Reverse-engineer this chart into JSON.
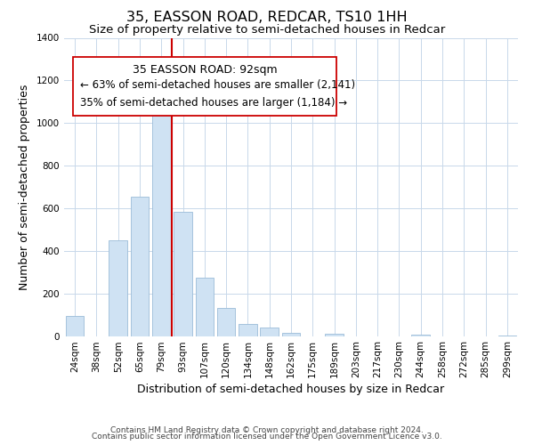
{
  "title": "35, EASSON ROAD, REDCAR, TS10 1HH",
  "subtitle": "Size of property relative to semi-detached houses in Redcar",
  "xlabel": "Distribution of semi-detached houses by size in Redcar",
  "ylabel": "Number of semi-detached properties",
  "bar_labels": [
    "24sqm",
    "38sqm",
    "52sqm",
    "65sqm",
    "79sqm",
    "93sqm",
    "107sqm",
    "120sqm",
    "134sqm",
    "148sqm",
    "162sqm",
    "175sqm",
    "189sqm",
    "203sqm",
    "217sqm",
    "230sqm",
    "244sqm",
    "258sqm",
    "272sqm",
    "285sqm",
    "299sqm"
  ],
  "bar_values": [
    95,
    0,
    450,
    655,
    1075,
    585,
    275,
    130,
    55,
    40,
    15,
    0,
    10,
    0,
    0,
    0,
    5,
    0,
    0,
    0,
    2
  ],
  "bar_color": "#cfe2f3",
  "bar_edge_color": "#9bbcd8",
  "vline_color": "#cc0000",
  "box_color": "#cc0000",
  "annotation_title": "35 EASSON ROAD: 92sqm",
  "annotation_line1": "← 63% of semi-detached houses are smaller (2,141)",
  "annotation_line2": "35% of semi-detached houses are larger (1,184) →",
  "ylim": [
    0,
    1400
  ],
  "yticks": [
    0,
    200,
    400,
    600,
    800,
    1000,
    1200,
    1400
  ],
  "footer1": "Contains HM Land Registry data © Crown copyright and database right 2024.",
  "footer2": "Contains public sector information licensed under the Open Government Licence v3.0.",
  "bg_color": "#ffffff",
  "grid_color": "#c8d8ea",
  "title_fontsize": 11.5,
  "subtitle_fontsize": 9.5,
  "axis_label_fontsize": 9,
  "tick_fontsize": 7.5,
  "annotation_title_fontsize": 9,
  "annotation_fontsize": 8.5,
  "footer_fontsize": 6.5
}
